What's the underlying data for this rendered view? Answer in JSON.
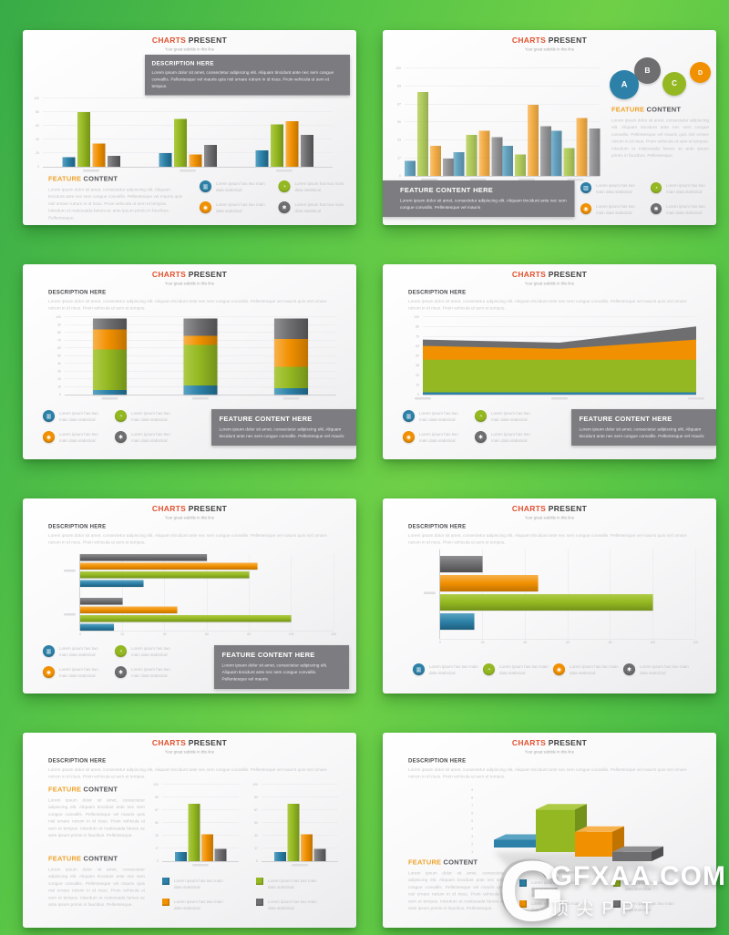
{
  "page": {
    "background": {
      "green_dark": "#38ab47",
      "green_light": "#6fd047"
    },
    "watermark": {
      "logo": "G",
      "main": "GFXAA.COM",
      "sub": "顶尖PPT"
    }
  },
  "common": {
    "title_accent": "CHARTS",
    "title_rest": " PRESENT",
    "subtitle": "Your great subtitle in this line",
    "description_title": "DESCRIPTION HERE",
    "description_body": "Lorem ipsum dolor sit amet, consectetur adipiscing elit. Aliquam tincidunt ante nec sem congue convallis. Pellentesque vel mauris quis nisl ornare rutrum in id risus. Proin vehicula ut sem et tempus.",
    "feature_accent": "FEATURE",
    "feature_rest": " CONTENT",
    "feature_body": "Lorem ipsum dolor sit amet, consectetur adipiscing elit. Aliquam tincidunt ante nec sem congue convallis. Pellentesque vel mauris quis nisl ornare rutrum in id risus. Proin vehicula ut sem et tempus. Interdum et malesuada fames ac ante ipsum primis in faucibus. Pellentesque.",
    "feature_box_title": "FEATURE CONTENT HERE",
    "feature_box_body": "Lorem ipsum dolor sit amet, consectetur adipiscing elit. Aliquam tincidunt ante nec sem congue convallis. Pellentesque vel mauris",
    "legend_text": "Lorem ipsum has two main data statistical",
    "circle_labels": [
      "A",
      "B",
      "C",
      "D"
    ],
    "circle_colors": [
      "#2d81a8",
      "#6e6e70",
      "#94b821",
      "#f19000"
    ],
    "legend_icons": [
      {
        "name": "bar-chart-icon",
        "glyph": "▥",
        "series": "blue"
      },
      {
        "name": "pie-chart-icon",
        "glyph": "◔",
        "series": "green"
      },
      {
        "name": "stats-target-icon",
        "glyph": "◉",
        "series": "orange"
      },
      {
        "name": "gear-icon",
        "glyph": "✱",
        "series": "gray"
      }
    ],
    "series_colors": {
      "blue": {
        "base": "#2d81a8",
        "light": "#5aa3c2",
        "dark": "#1e5f7e"
      },
      "green": {
        "base": "#94b821",
        "light": "#aecb46",
        "dark": "#73921a"
      },
      "orange": {
        "base": "#f19000",
        "light": "#f7b24d",
        "dark": "#c07300"
      },
      "gray": {
        "base": "#6e6e70",
        "light": "#909092",
        "dark": "#4f4f51"
      }
    },
    "accent_title_color": "#e2512e",
    "accent_feature_color": "#efa32b"
  },
  "chart_data": [
    {
      "id": "slide-1",
      "type": "bar",
      "title": "CHARTS PRESENT",
      "ylim": [
        0,
        100
      ],
      "grid": true,
      "categories": [
        "",
        "",
        ""
      ],
      "series": [
        {
          "name": "blue",
          "values": [
            14,
            20,
            24
          ]
        },
        {
          "name": "green",
          "values": [
            80,
            70,
            62
          ]
        },
        {
          "name": "orange",
          "values": [
            34,
            18,
            67
          ]
        },
        {
          "name": "gray",
          "values": [
            16,
            32,
            47
          ]
        }
      ]
    },
    {
      "id": "slide-2",
      "type": "bar",
      "title": "CHARTS PRESENT",
      "ylim": [
        0,
        100
      ],
      "grid": true,
      "categories": [
        "",
        "",
        "",
        ""
      ],
      "series": [
        {
          "name": "blue",
          "values": [
            14,
            22,
            28,
            42
          ]
        },
        {
          "name": "green",
          "values": [
            78,
            38,
            20,
            26
          ]
        },
        {
          "name": "orange",
          "values": [
            28,
            42,
            66,
            54
          ]
        },
        {
          "name": "gray",
          "values": [
            16,
            36,
            46,
            44
          ]
        }
      ]
    },
    {
      "id": "slide-3",
      "type": "bar-stacked",
      "title": "CHARTS PRESENT",
      "ylim": [
        0,
        100
      ],
      "grid": true,
      "categories": [
        "",
        "",
        ""
      ],
      "series": [
        {
          "name": "blue",
          "values": [
            6,
            12,
            8
          ]
        },
        {
          "name": "green",
          "values": [
            52,
            52,
            28
          ]
        },
        {
          "name": "orange",
          "values": [
            26,
            12,
            36
          ]
        },
        {
          "name": "gray",
          "values": [
            14,
            22,
            26
          ]
        }
      ]
    },
    {
      "id": "slide-4",
      "type": "area-stacked",
      "title": "CHARTS PRESENT",
      "ylim": [
        0,
        100
      ],
      "grid": true,
      "x": [
        "",
        "",
        ""
      ],
      "series": [
        {
          "name": "blue",
          "values": [
            3,
            3,
            3
          ]
        },
        {
          "name": "green",
          "values": [
            42,
            42,
            42
          ]
        },
        {
          "name": "orange",
          "values": [
            18,
            14,
            26
          ]
        },
        {
          "name": "gray",
          "values": [
            8,
            8,
            17
          ]
        }
      ]
    },
    {
      "id": "slide-5",
      "type": "bar-horizontal",
      "title": "CHARTS PRESENT",
      "xlim": [
        0,
        120
      ],
      "grid": true,
      "categories": [
        "",
        ""
      ],
      "series": [
        {
          "name": "blue",
          "values": [
            30,
            16
          ]
        },
        {
          "name": "green",
          "values": [
            80,
            100
          ]
        },
        {
          "name": "orange",
          "values": [
            84,
            46
          ]
        },
        {
          "name": "gray",
          "values": [
            60,
            20
          ]
        }
      ]
    },
    {
      "id": "slide-6",
      "type": "bar-horizontal",
      "title": "CHARTS PRESENT",
      "xlim": [
        0,
        120
      ],
      "grid": true,
      "categories": [
        ""
      ],
      "series": [
        {
          "name": "blue",
          "values": [
            16
          ]
        },
        {
          "name": "green",
          "values": [
            100
          ]
        },
        {
          "name": "orange",
          "values": [
            46
          ]
        },
        {
          "name": "gray",
          "values": [
            20
          ]
        }
      ]
    },
    {
      "id": "slide-7",
      "type": "bar",
      "title": "CHARTS PRESENT",
      "ylim": [
        0,
        100
      ],
      "grid": true,
      "categories": [
        "",
        ""
      ],
      "note": "two identical mini charts side by side",
      "series": [
        {
          "name": "blue",
          "values": [
            12,
            12
          ]
        },
        {
          "name": "green",
          "values": [
            75,
            75
          ]
        },
        {
          "name": "orange",
          "values": [
            35,
            35
          ]
        },
        {
          "name": "gray",
          "values": [
            16,
            16
          ]
        }
      ]
    },
    {
      "id": "slide-8",
      "type": "bar-3d",
      "title": "CHARTS PRESENT",
      "ylim": [
        0,
        100
      ],
      "grid": false,
      "categories": [
        ""
      ],
      "series": [
        {
          "name": "blue",
          "values": [
            10
          ]
        },
        {
          "name": "green",
          "values": [
            55
          ]
        },
        {
          "name": "orange",
          "values": [
            32
          ]
        },
        {
          "name": "gray",
          "values": [
            12
          ]
        }
      ]
    }
  ]
}
